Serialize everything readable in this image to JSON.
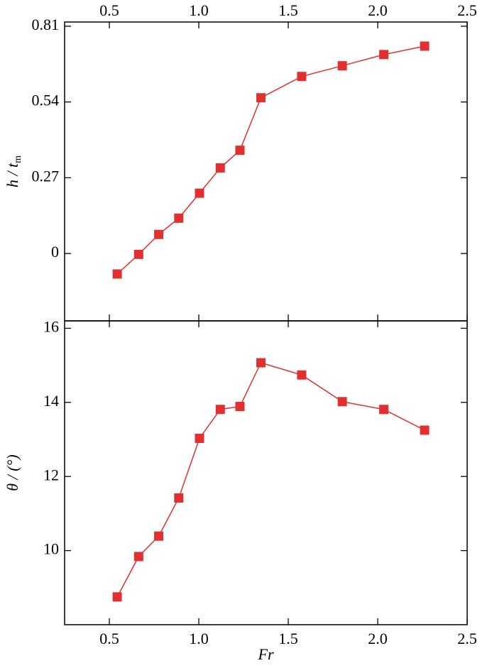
{
  "chart_data": [
    {
      "type": "line",
      "ylabel": "h / t",
      "ylabel_subscript": "m",
      "xtick_side": "top",
      "x": [
        0.544,
        0.664,
        0.776,
        0.888,
        1.004,
        1.12,
        1.23,
        1.347,
        1.575,
        1.802,
        2.034,
        2.262
      ],
      "series": [
        {
          "color": "#e03030",
          "values": [
            -0.073,
            -0.003,
            0.068,
            0.126,
            0.215,
            0.305,
            0.368,
            0.555,
            0.631,
            0.669,
            0.709,
            0.739
          ]
        }
      ],
      "xlim": [
        0.25,
        2.5
      ],
      "xticks": [
        0.5,
        {
          "value": 1,
          "label": "1.0"
        },
        1.5,
        {
          "value": 2,
          "label": "2.0"
        },
        2.5
      ],
      "ylim": [
        -0.24,
        0.825
      ],
      "yticks": [
        0,
        0.27,
        0.54,
        0.81
      ]
    },
    {
      "type": "line",
      "ylabel": "θ / (°)",
      "xlabel": "Fr",
      "xtick_side": "bottom",
      "x": [
        0.544,
        0.664,
        0.776,
        0.888,
        1.004,
        1.12,
        1.23,
        1.347,
        1.575,
        1.802,
        2.034,
        2.262
      ],
      "series": [
        {
          "color": "#e03030",
          "values": [
            8.75,
            9.84,
            10.39,
            11.42,
            13.03,
            13.81,
            13.89,
            15.07,
            14.74,
            14.02,
            13.81,
            13.25
          ]
        }
      ],
      "xlim": [
        0.25,
        2.5
      ],
      "xticks": [
        0.5,
        {
          "value": 1,
          "label": "1.0"
        },
        1.5,
        {
          "value": 2,
          "label": "2.0"
        },
        2.5
      ],
      "ylim": [
        8,
        16.2
      ],
      "yticks": [
        10,
        12,
        14,
        16
      ]
    }
  ]
}
